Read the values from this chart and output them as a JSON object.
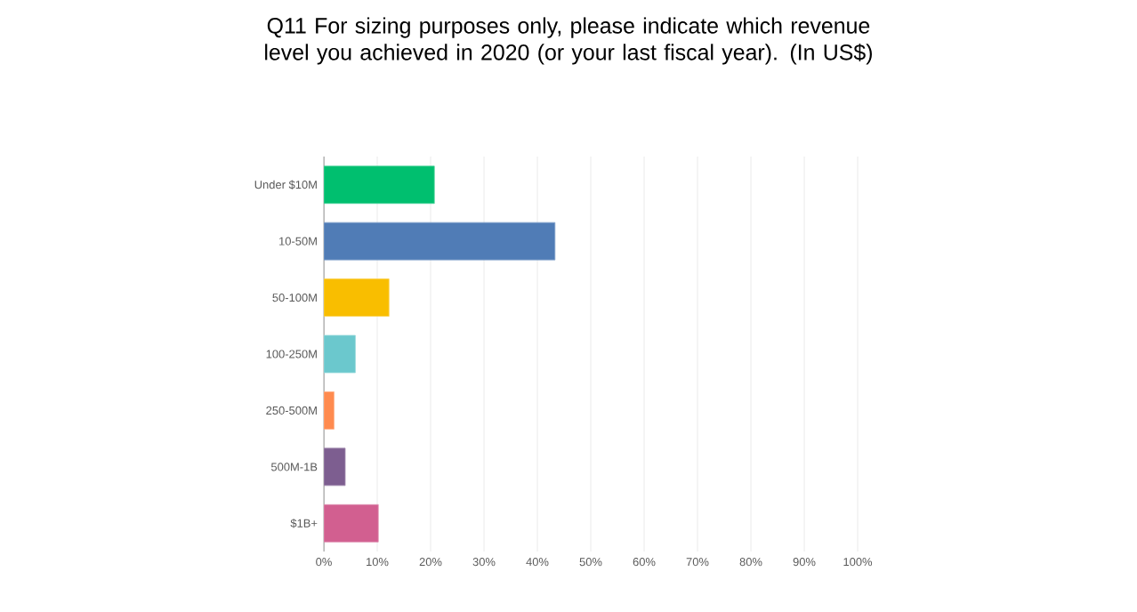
{
  "chart_data": {
    "type": "bar",
    "orientation": "horizontal",
    "title": "Q11 For sizing purposes only, please indicate which revenue level you achieved in 2020 (or your last fiscal year).  (In US$)",
    "categories": [
      "Under $10M",
      "10-50M",
      "50-100M",
      "100-250M",
      "250-500M",
      "500M-1B",
      "$1B+"
    ],
    "values": [
      20.7,
      43.3,
      12.2,
      5.9,
      1.9,
      4.0,
      10.2
    ],
    "colors": [
      "#00bf6f",
      "#507cb6",
      "#f9be00",
      "#6bc8cd",
      "#ff8b4f",
      "#7d5e90",
      "#d25f90"
    ],
    "xlim": [
      0,
      100
    ],
    "xticks": [
      {
        "value": 0,
        "label": "0%"
      },
      {
        "value": 10,
        "label": "10%"
      },
      {
        "value": 20,
        "label": "20%"
      },
      {
        "value": 30,
        "label": "30%"
      },
      {
        "value": 40,
        "label": "40%"
      },
      {
        "value": 50,
        "label": "50%"
      },
      {
        "value": 60,
        "label": "60%"
      },
      {
        "value": 70,
        "label": "70%"
      },
      {
        "value": 80,
        "label": "80%"
      },
      {
        "value": 90,
        "label": "90%"
      },
      {
        "value": 100,
        "label": "100%"
      }
    ],
    "grid": "x"
  }
}
